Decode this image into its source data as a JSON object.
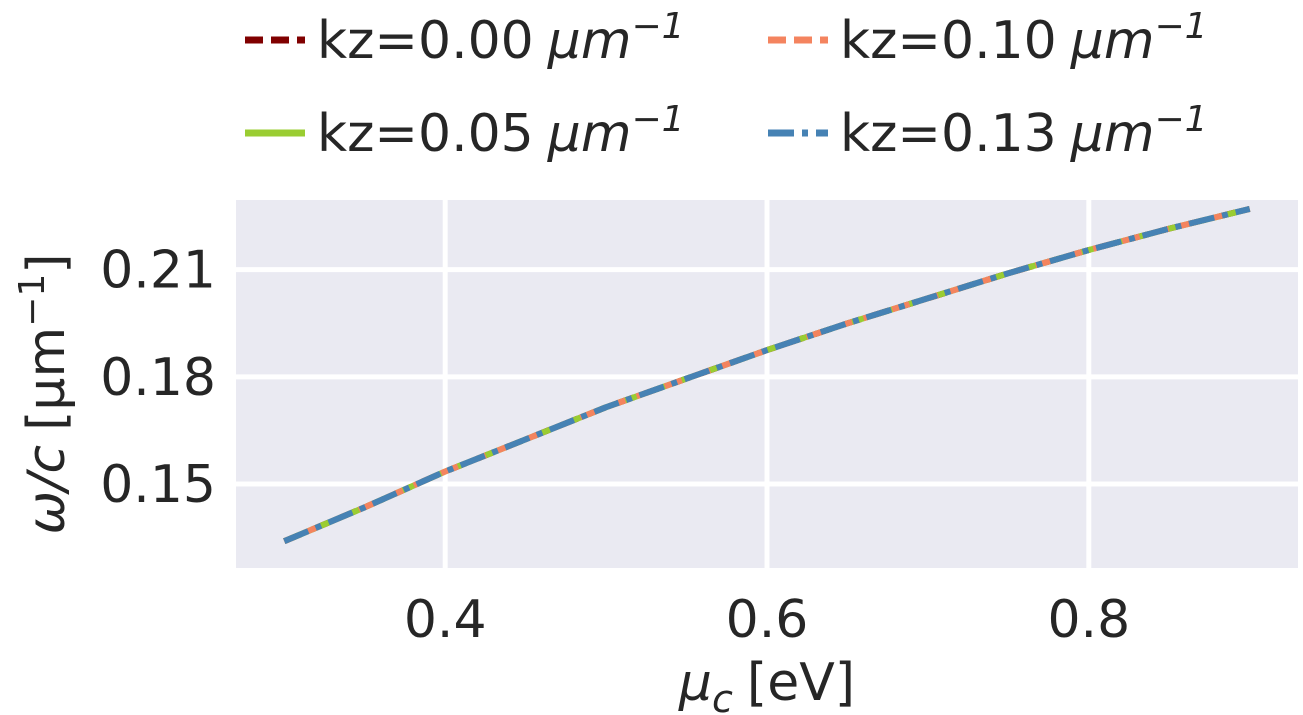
{
  "chart_data": {
    "type": "line",
    "title": "",
    "xlabel": {
      "symbol": "μ",
      "sub": "c",
      "unit": "[eV]"
    },
    "ylabel": {
      "symbol": "ω/c",
      "unit_open": "[μm",
      "unit_exp": "−1",
      "unit_close": "]"
    },
    "xlim": [
      0.27,
      0.93
    ],
    "ylim": [
      0.1265,
      0.2295
    ],
    "xticks": [
      0.4,
      0.6,
      0.8
    ],
    "xtick_labels": [
      "0.4",
      "0.6",
      "0.8"
    ],
    "yticks": [
      0.15,
      0.18,
      0.21
    ],
    "ytick_labels": [
      "0.15",
      "0.18",
      "0.21"
    ],
    "grid": true,
    "legend_position": "top",
    "x": [
      0.3,
      0.35,
      0.4,
      0.45,
      0.5,
      0.55,
      0.6,
      0.65,
      0.7,
      0.75,
      0.8,
      0.85,
      0.9
    ],
    "series": [
      {
        "name": "kz=0.00",
        "unit_base": "μm",
        "unit_exp": "−1",
        "color": "#800000",
        "dash": "dashed",
        "values": [
          0.134,
          0.1435,
          0.1535,
          0.1625,
          0.1715,
          0.1795,
          0.1875,
          0.195,
          0.202,
          0.209,
          0.2155,
          0.2215,
          0.227
        ]
      },
      {
        "name": "kz=0.05",
        "unit_base": "μm",
        "unit_exp": "−1",
        "color": "#9acd32",
        "dash": "solid",
        "values": [
          0.134,
          0.1435,
          0.1535,
          0.1625,
          0.1715,
          0.1795,
          0.1875,
          0.195,
          0.202,
          0.209,
          0.2155,
          0.2215,
          0.227
        ]
      },
      {
        "name": "kz=0.10",
        "unit_base": "μm",
        "unit_exp": "−1",
        "color": "#f4845f",
        "dash": "dashed",
        "values": [
          0.134,
          0.1435,
          0.1535,
          0.1625,
          0.1715,
          0.1795,
          0.1875,
          0.195,
          0.202,
          0.209,
          0.2155,
          0.2215,
          0.227
        ]
      },
      {
        "name": "kz=0.13",
        "unit_base": "μm",
        "unit_exp": "−1",
        "color": "#4682b4",
        "dash": "dashdot",
        "values": [
          0.134,
          0.1435,
          0.1535,
          0.1625,
          0.1715,
          0.1795,
          0.1875,
          0.195,
          0.202,
          0.209,
          0.2155,
          0.2215,
          0.227
        ]
      }
    ]
  }
}
